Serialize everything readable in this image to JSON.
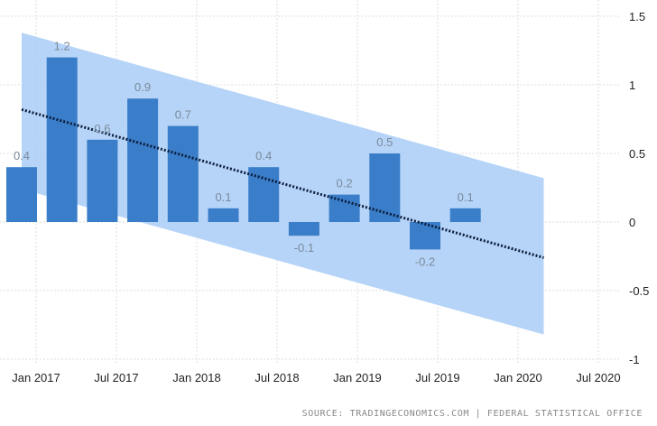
{
  "chart_data": {
    "type": "bar",
    "title": "",
    "xlabel": "",
    "ylabel": "",
    "categories": [
      "Q4 2016",
      "Q1 2017",
      "Q2 2017",
      "Q3 2017",
      "Q4 2017",
      "Q1 2018",
      "Q2 2018",
      "Q3 2018",
      "Q4 2018",
      "Q1 2019",
      "Q2 2019",
      "Q3 2019"
    ],
    "values": [
      0.4,
      1.2,
      0.6,
      0.9,
      0.7,
      0.1,
      0.4,
      -0.1,
      0.2,
      0.5,
      -0.2,
      0.1
    ],
    "data_labels": [
      "0.4",
      "1.2",
      "0.6",
      "0.9",
      "0.7",
      "0.1",
      "0.4",
      "-0.1",
      "0.2",
      "0.5",
      "-0.2",
      "0.1"
    ],
    "ylim": [
      -1,
      1.5
    ],
    "yticks": [
      1.5,
      1,
      0.5,
      0,
      -0.5,
      -1
    ],
    "ytick_labels": [
      "1.5",
      "1",
      "0.5",
      "0",
      "-0.5",
      "-1"
    ],
    "y_axis_side": "right",
    "xticks": [
      "2017-01",
      "2017-07",
      "2018-01",
      "2018-07",
      "2019-01",
      "2019-07",
      "2020-01",
      "2020-07"
    ],
    "xtick_labels": [
      "Jan 2017",
      "Jul 2017",
      "Jan 2018",
      "Jul 2018",
      "Jan 2019",
      "Jul 2019",
      "Jan 2020",
      "Jul 2020"
    ],
    "grid": true,
    "trend": {
      "style": "dotted",
      "x": [
        "Q4 2016",
        "Q2 2020"
      ],
      "y": [
        0.82,
        -0.26
      ]
    },
    "forecast_band": {
      "x": [
        "Q4 2016",
        "Q2 2020"
      ],
      "upper": [
        1.38,
        0.32
      ],
      "lower": [
        0.24,
        -0.82
      ]
    },
    "colors": {
      "bar": "#3a7dc9",
      "band": "#a9cdf7",
      "trend": "#0d1f3c",
      "grid": "#dddddd"
    }
  },
  "source": "SOURCE: TRADINGECONOMICS.COM | FEDERAL STATISTICAL OFFICE"
}
